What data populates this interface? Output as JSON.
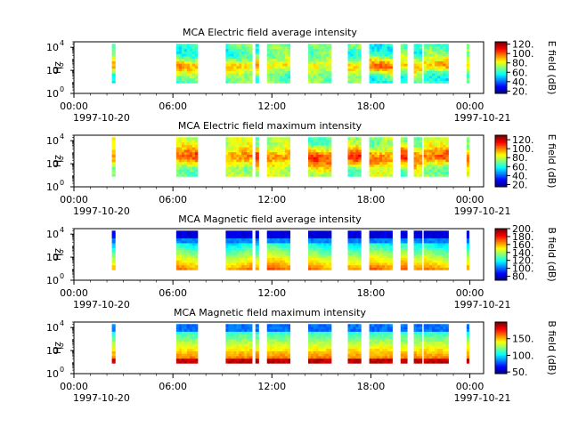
{
  "chart_data": [
    {
      "type": "heatmap",
      "title": "MCA  Electric field average intensity",
      "ylabel": "Hz",
      "ytick_labels": [
        "10",
        "10",
        "10"
      ],
      "ytick_exps": [
        "0",
        "2",
        "4"
      ],
      "ylim": [
        1,
        30000
      ],
      "yscale": "log",
      "xlim": [
        "1997-10-20T00:00",
        "1997-10-21T00:50"
      ],
      "xtick_labels": [
        "00:00",
        "06:00",
        "12:00",
        "18:00",
        "00:00"
      ],
      "xdate_labels": [
        "1997-10-20",
        "1997-10-21"
      ],
      "colorbar": {
        "label": "E field (dB)",
        "range": [
          15,
          125
        ],
        "tick_labels": [
          "20.",
          "40.",
          "60.",
          "80.",
          "100.",
          "120."
        ],
        "tick_values": [
          20,
          40,
          60,
          80,
          100,
          120
        ]
      },
      "field": "E-avg"
    },
    {
      "type": "heatmap",
      "title": "MCA  Electric field maximum intensity",
      "ylabel": "Hz",
      "ytick_labels": [
        "10",
        "10",
        "10"
      ],
      "ytick_exps": [
        "0",
        "2",
        "4"
      ],
      "ylim": [
        1,
        30000
      ],
      "yscale": "log",
      "xlim": [
        "1997-10-20T00:00",
        "1997-10-21T00:50"
      ],
      "xtick_labels": [
        "00:00",
        "06:00",
        "12:00",
        "18:00",
        "00:00"
      ],
      "xdate_labels": [
        "1997-10-20",
        "1997-10-21"
      ],
      "colorbar": {
        "label": "E field (dB)",
        "range": [
          15,
          130
        ],
        "tick_labels": [
          "20.",
          "40.",
          "60.",
          "80.",
          "100.",
          "120."
        ],
        "tick_values": [
          20,
          40,
          60,
          80,
          100,
          120
        ]
      },
      "field": "E-max"
    },
    {
      "type": "heatmap",
      "title": "MCA  Magnetic field average intensity",
      "ylabel": "Hz",
      "ytick_labels": [
        "10",
        "10",
        "10"
      ],
      "ytick_exps": [
        "0",
        "2",
        "4"
      ],
      "ylim": [
        1,
        30000
      ],
      "yscale": "log",
      "xlim": [
        "1997-10-20T00:00",
        "1997-10-21T00:50"
      ],
      "xtick_labels": [
        "00:00",
        "06:00",
        "12:00",
        "18:00",
        "00:00"
      ],
      "xdate_labels": [
        "1997-10-20",
        "1997-10-21"
      ],
      "colorbar": {
        "label": "B field (dB)",
        "range": [
          70,
          200
        ],
        "tick_labels": [
          "80.",
          "100.",
          "120.",
          "140.",
          "160.",
          "180.",
          "200."
        ],
        "tick_values": [
          80,
          100,
          120,
          140,
          160,
          180,
          200
        ]
      },
      "field": "B-avg"
    },
    {
      "type": "heatmap",
      "title": "MCA  Magnetic field maximum intensity",
      "ylabel": "Hz",
      "ytick_labels": [
        "10",
        "10",
        "10"
      ],
      "ytick_exps": [
        "0",
        "2",
        "4"
      ],
      "ylim": [
        1,
        30000
      ],
      "yscale": "log",
      "xlim": [
        "1997-10-20T00:00",
        "1997-10-21T00:50"
      ],
      "xtick_labels": [
        "00:00",
        "06:00",
        "12:00",
        "18:00",
        "00:00"
      ],
      "xdate_labels": [
        "1997-10-20",
        "1997-10-21"
      ],
      "colorbar": {
        "label": "B field (dB)",
        "range": [
          45,
          200
        ],
        "tick_labels": [
          "50.",
          "100.",
          "150."
        ],
        "tick_values": [
          50,
          100,
          150
        ]
      },
      "field": "B-max"
    }
  ],
  "data_intervals_hours": [
    [
      2.3,
      2.5
    ],
    [
      6.2,
      7.5
    ],
    [
      9.2,
      10.8
    ],
    [
      11.0,
      11.2
    ],
    [
      11.7,
      13.1
    ],
    [
      14.2,
      15.6
    ],
    [
      16.6,
      17.4
    ],
    [
      17.9,
      19.3
    ],
    [
      19.8,
      20.2
    ],
    [
      20.6,
      21.1
    ],
    [
      21.2,
      22.7
    ],
    [
      23.8,
      23.95
    ]
  ]
}
